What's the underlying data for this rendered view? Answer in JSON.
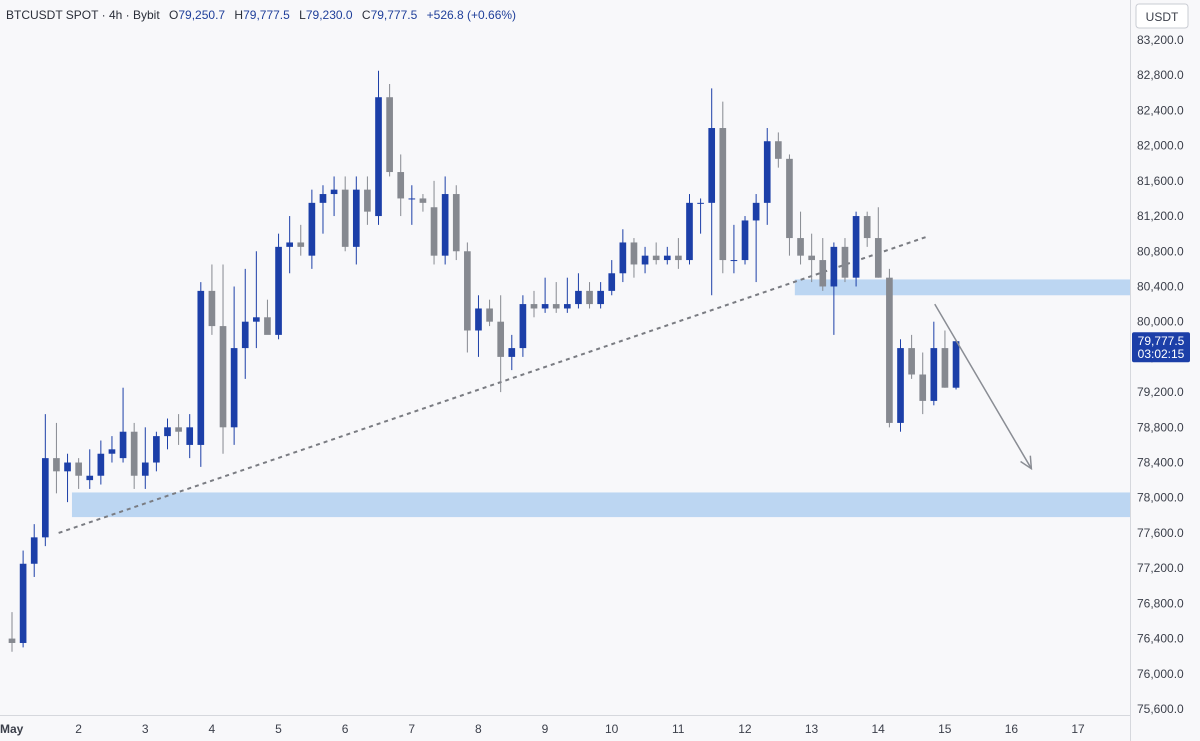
{
  "header": {
    "symbol": "BTCUSDT SPOT",
    "interval": "4h",
    "exchange": "Bybit",
    "open_label": "O",
    "open": "79,250.7",
    "high_label": "H",
    "high": "79,777.5",
    "low_label": "L",
    "low": "79,230.0",
    "close_label": "C",
    "close": "79,777.5",
    "change": "+526.8 (+0.66%)"
  },
  "axis": {
    "currency": "USDT",
    "price_tag": "79,777.5",
    "countdown": "03:02:15"
  },
  "colors": {
    "up": "#1c3fa8",
    "down": "#868990",
    "zone": "#bcd6f2",
    "trendline": "#7a7c82",
    "arrow": "#8a8d94",
    "tag_bg": "#1c3fa8"
  },
  "chart_data": {
    "type": "candlestick",
    "y_axis": {
      "range": [
        75600,
        83400
      ],
      "ticks": [
        "83,200.0",
        "82,800.0",
        "82,400.0",
        "82,000.0",
        "81,600.0",
        "81,200.0",
        "80,800.0",
        "80,400.0",
        "80,000.0",
        "79,600.0",
        "79,200.0",
        "78,800.0",
        "78,400.0",
        "78,000.0",
        "77,600.0",
        "77,200.0",
        "76,800.0",
        "76,400.0",
        "76,000.0",
        "75,600.0"
      ],
      "tick_values": [
        83200,
        82800,
        82400,
        82000,
        81600,
        81200,
        80800,
        80400,
        80000,
        79600,
        79200,
        78800,
        78400,
        78000,
        77600,
        77200,
        76800,
        76400,
        76000,
        75600
      ]
    },
    "x_axis": {
      "range": [
        1.0,
        17.8
      ],
      "ticks": [
        {
          "label": "May",
          "value": 1,
          "bold": true
        },
        {
          "label": "2",
          "value": 2
        },
        {
          "label": "3",
          "value": 3
        },
        {
          "label": "4",
          "value": 4
        },
        {
          "label": "5",
          "value": 5
        },
        {
          "label": "6",
          "value": 6
        },
        {
          "label": "7",
          "value": 7
        },
        {
          "label": "8",
          "value": 8
        },
        {
          "label": "9",
          "value": 9
        },
        {
          "label": "10",
          "value": 10
        },
        {
          "label": "11",
          "value": 11
        },
        {
          "label": "12",
          "value": 12
        },
        {
          "label": "13",
          "value": 13
        },
        {
          "label": "14",
          "value": 14
        },
        {
          "label": "15",
          "value": 15
        },
        {
          "label": "16",
          "value": 16
        },
        {
          "label": "17",
          "value": 17
        }
      ]
    },
    "candles": [
      {
        "o": 76400,
        "h": 76700,
        "l": 76250,
        "c": 76350
      },
      {
        "o": 76350,
        "h": 77400,
        "l": 76300,
        "c": 77250
      },
      {
        "o": 77250,
        "h": 77700,
        "l": 77100,
        "c": 77550
      },
      {
        "o": 77550,
        "h": 78950,
        "l": 77450,
        "c": 78450
      },
      {
        "o": 78450,
        "h": 78850,
        "l": 78050,
        "c": 78300
      },
      {
        "o": 78300,
        "h": 78500,
        "l": 77950,
        "c": 78400
      },
      {
        "o": 78400,
        "h": 78450,
        "l": 78100,
        "c": 78250
      },
      {
        "o": 78200,
        "h": 78550,
        "l": 78100,
        "c": 78250
      },
      {
        "o": 78250,
        "h": 78650,
        "l": 78150,
        "c": 78500
      },
      {
        "o": 78500,
        "h": 78700,
        "l": 78400,
        "c": 78550
      },
      {
        "o": 78450,
        "h": 79250,
        "l": 78400,
        "c": 78750
      },
      {
        "o": 78750,
        "h": 78850,
        "l": 78100,
        "c": 78250
      },
      {
        "o": 78250,
        "h": 78800,
        "l": 78100,
        "c": 78400
      },
      {
        "o": 78400,
        "h": 78750,
        "l": 78300,
        "c": 78700
      },
      {
        "o": 78700,
        "h": 78900,
        "l": 78550,
        "c": 78800
      },
      {
        "o": 78800,
        "h": 78950,
        "l": 78600,
        "c": 78750
      },
      {
        "o": 78600,
        "h": 78950,
        "l": 78450,
        "c": 78800
      },
      {
        "o": 78600,
        "h": 80450,
        "l": 78350,
        "c": 80350
      },
      {
        "o": 80350,
        "h": 80650,
        "l": 79850,
        "c": 79950
      },
      {
        "o": 79950,
        "h": 80650,
        "l": 78500,
        "c": 78800
      },
      {
        "o": 78800,
        "h": 80400,
        "l": 78600,
        "c": 79700
      },
      {
        "o": 79700,
        "h": 80600,
        "l": 79350,
        "c": 80000
      },
      {
        "o": 80000,
        "h": 80800,
        "l": 79700,
        "c": 80050
      },
      {
        "o": 80050,
        "h": 80250,
        "l": 79900,
        "c": 79850
      },
      {
        "o": 79850,
        "h": 81000,
        "l": 79800,
        "c": 80850
      },
      {
        "o": 80850,
        "h": 81200,
        "l": 80550,
        "c": 80900
      },
      {
        "o": 80900,
        "h": 81100,
        "l": 80750,
        "c": 80850
      },
      {
        "o": 80750,
        "h": 81500,
        "l": 80600,
        "c": 81350
      },
      {
        "o": 81350,
        "h": 81550,
        "l": 81000,
        "c": 81450
      },
      {
        "o": 81450,
        "h": 81650,
        "l": 81200,
        "c": 81500
      },
      {
        "o": 81500,
        "h": 81650,
        "l": 80800,
        "c": 80850
      },
      {
        "o": 80850,
        "h": 81650,
        "l": 80650,
        "c": 81500
      },
      {
        "o": 81500,
        "h": 81650,
        "l": 81100,
        "c": 81250
      },
      {
        "o": 81200,
        "h": 82850,
        "l": 81100,
        "c": 82550
      },
      {
        "o": 82550,
        "h": 82700,
        "l": 81650,
        "c": 81700
      },
      {
        "o": 81700,
        "h": 81900,
        "l": 81200,
        "c": 81400
      },
      {
        "o": 81400,
        "h": 81550,
        "l": 81100,
        "c": 81400
      },
      {
        "o": 81400,
        "h": 81450,
        "l": 81250,
        "c": 81350
      },
      {
        "o": 81300,
        "h": 81600,
        "l": 80650,
        "c": 80750
      },
      {
        "o": 80750,
        "h": 81650,
        "l": 80650,
        "c": 81450
      },
      {
        "o": 81450,
        "h": 81550,
        "l": 80700,
        "c": 80800
      },
      {
        "o": 80800,
        "h": 80900,
        "l": 79650,
        "c": 79900
      },
      {
        "o": 79900,
        "h": 80300,
        "l": 79600,
        "c": 80150
      },
      {
        "o": 80150,
        "h": 80250,
        "l": 79950,
        "c": 80000
      },
      {
        "o": 80000,
        "h": 80300,
        "l": 79200,
        "c": 79600
      },
      {
        "o": 79600,
        "h": 79850,
        "l": 79450,
        "c": 79700
      },
      {
        "o": 79700,
        "h": 80300,
        "l": 79600,
        "c": 80200
      },
      {
        "o": 80200,
        "h": 80350,
        "l": 80050,
        "c": 80150
      },
      {
        "o": 80150,
        "h": 80500,
        "l": 80100,
        "c": 80200
      },
      {
        "o": 80200,
        "h": 80450,
        "l": 80100,
        "c": 80150
      },
      {
        "o": 80150,
        "h": 80500,
        "l": 80100,
        "c": 80200
      },
      {
        "o": 80200,
        "h": 80550,
        "l": 80150,
        "c": 80350
      },
      {
        "o": 80350,
        "h": 80450,
        "l": 80150,
        "c": 80200
      },
      {
        "o": 80200,
        "h": 80450,
        "l": 80150,
        "c": 80350
      },
      {
        "o": 80350,
        "h": 80700,
        "l": 80300,
        "c": 80550
      },
      {
        "o": 80550,
        "h": 81050,
        "l": 80450,
        "c": 80900
      },
      {
        "o": 80900,
        "h": 80950,
        "l": 80500,
        "c": 80650
      },
      {
        "o": 80650,
        "h": 80850,
        "l": 80550,
        "c": 80750
      },
      {
        "o": 80750,
        "h": 80900,
        "l": 80650,
        "c": 80700
      },
      {
        "o": 80700,
        "h": 80850,
        "l": 80650,
        "c": 80750
      },
      {
        "o": 80750,
        "h": 80950,
        "l": 80600,
        "c": 80700
      },
      {
        "o": 80700,
        "h": 81450,
        "l": 80650,
        "c": 81350
      },
      {
        "o": 81350,
        "h": 81400,
        "l": 81000,
        "c": 81350
      },
      {
        "o": 81350,
        "h": 82650,
        "l": 80300,
        "c": 82200
      },
      {
        "o": 82200,
        "h": 82500,
        "l": 80550,
        "c": 80700
      },
      {
        "o": 80700,
        "h": 81100,
        "l": 80550,
        "c": 80700
      },
      {
        "o": 80700,
        "h": 81200,
        "l": 80650,
        "c": 81150
      },
      {
        "o": 81150,
        "h": 81450,
        "l": 80450,
        "c": 81350
      },
      {
        "o": 81350,
        "h": 82200,
        "l": 81100,
        "c": 82050
      },
      {
        "o": 82050,
        "h": 82150,
        "l": 81750,
        "c": 81850
      },
      {
        "o": 81850,
        "h": 81900,
        "l": 80750,
        "c": 80950
      },
      {
        "o": 80950,
        "h": 81250,
        "l": 80650,
        "c": 80750
      },
      {
        "o": 80750,
        "h": 81000,
        "l": 80450,
        "c": 80700
      },
      {
        "o": 80700,
        "h": 80950,
        "l": 80350,
        "c": 80400
      },
      {
        "o": 80400,
        "h": 80900,
        "l": 79850,
        "c": 80850
      },
      {
        "o": 80850,
        "h": 80950,
        "l": 80450,
        "c": 80500
      },
      {
        "o": 80500,
        "h": 81250,
        "l": 80400,
        "c": 81200
      },
      {
        "o": 81200,
        "h": 81250,
        "l": 80850,
        "c": 80950
      },
      {
        "o": 80950,
        "h": 81300,
        "l": 80500,
        "c": 80500
      },
      {
        "o": 80500,
        "h": 80600,
        "l": 78800,
        "c": 78850
      },
      {
        "o": 78850,
        "h": 79800,
        "l": 78750,
        "c": 79700
      },
      {
        "o": 79700,
        "h": 79850,
        "l": 79350,
        "c": 79400
      },
      {
        "o": 79400,
        "h": 79650,
        "l": 78950,
        "c": 79100
      },
      {
        "o": 79100,
        "h": 80000,
        "l": 79050,
        "c": 79700
      },
      {
        "o": 79700,
        "h": 79900,
        "l": 79250,
        "c": 79250
      },
      {
        "o": 79250,
        "h": 79778,
        "l": 79230,
        "c": 79778
      }
    ],
    "candle_x": {
      "start": 1.0,
      "step": 0.1667
    },
    "zones": [
      {
        "y_top": 80480,
        "y_bottom": 80300,
        "x_start": 12.75,
        "x_end": 17.8
      },
      {
        "y_top": 78060,
        "y_bottom": 77780,
        "x_start": 1.9,
        "x_end": 17.8
      }
    ],
    "trendline": {
      "x1": 1.7,
      "y1": 77600,
      "x2": 14.75,
      "y2": 80970
    },
    "arrow": {
      "x1": 14.85,
      "y1": 80200,
      "x2": 16.3,
      "y2": 78330
    }
  }
}
